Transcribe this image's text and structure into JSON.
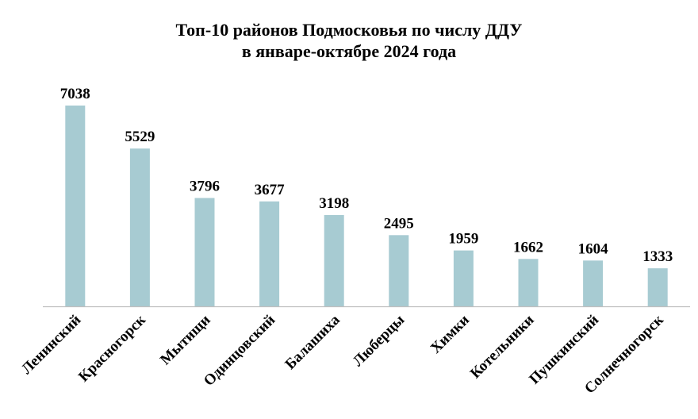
{
  "chart_data": {
    "type": "bar",
    "title": [
      "Топ-10 районов Подмосковья по числу ДДУ",
      "в январе-октябре 2024 года"
    ],
    "categories": [
      "Ленинский",
      "Красногорск",
      "Мытищи",
      "Одинцовский",
      "Балашиха",
      "Люберцы",
      "Химки",
      "Котельники",
      "Пушкинский",
      "Солнечногорск"
    ],
    "values": [
      7038,
      5529,
      3796,
      3677,
      3198,
      2495,
      1959,
      1662,
      1604,
      1333
    ],
    "ylim": [
      0,
      7038
    ],
    "grid": false,
    "legend": "none",
    "bar_color": "#a7cbd2",
    "axis_color": "#bfbfbf",
    "label_color": "#000000"
  }
}
